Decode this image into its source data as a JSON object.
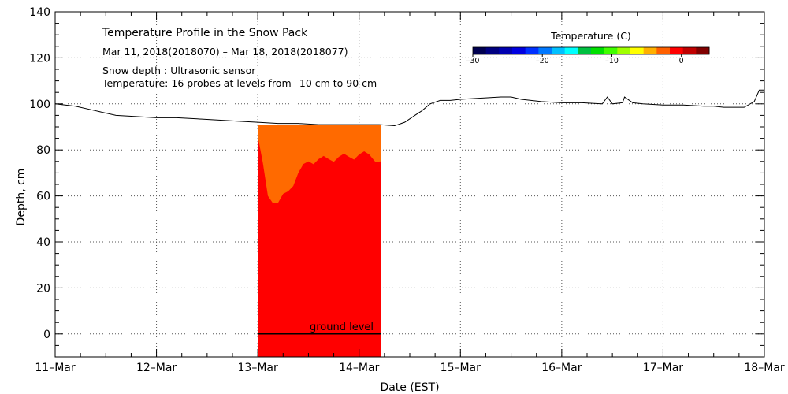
{
  "chart_data": {
    "type": "area",
    "title": "Temperature Profile in the Snow Pack",
    "date_range": "Mar 11, 2018(2018070) – Mar 18, 2018(2018077)",
    "notes": [
      "Snow depth : Ultrasonic sensor",
      "Temperature: 16 probes at levels from –10 cm to 90 cm"
    ],
    "xlabel": "Date (EST)",
    "ylabel": "Depth, cm",
    "x_ticks": [
      "11–Mar",
      "12–Mar",
      "13–Mar",
      "14–Mar",
      "15–Mar",
      "16–Mar",
      "17–Mar",
      "18–Mar"
    ],
    "xlim_days": [
      0,
      7
    ],
    "ylim": [
      -10,
      140
    ],
    "y_ticks": [
      0,
      20,
      40,
      60,
      80,
      100,
      120,
      140
    ],
    "grid": true,
    "ground_level_label": "ground level",
    "snow_depth_series": {
      "name": "Snow depth",
      "x_days": [
        0,
        0.2,
        0.4,
        0.6,
        0.8,
        1.0,
        1.2,
        1.4,
        1.6,
        1.8,
        2.0,
        2.2,
        2.4,
        2.6,
        2.8,
        3.0,
        3.2,
        3.35,
        3.45,
        3.55,
        3.62,
        3.7,
        3.8,
        3.9,
        4.0,
        4.2,
        4.4,
        4.5,
        4.6,
        4.8,
        5.0,
        5.2,
        5.4,
        5.45,
        5.5,
        5.6,
        5.62,
        5.7,
        5.8,
        6.0,
        6.2,
        6.4,
        6.5,
        6.6,
        6.8,
        6.9,
        6.95,
        7.0
      ],
      "y_cm": [
        100,
        99,
        97,
        95,
        94.5,
        94,
        94,
        93.5,
        93,
        92.5,
        92,
        91.5,
        91.5,
        91,
        91,
        91,
        91,
        90.5,
        92,
        95,
        97,
        100,
        101.5,
        101.5,
        102,
        102.5,
        103,
        103,
        102,
        101,
        100.5,
        100.5,
        100,
        103,
        100,
        100.5,
        103,
        100.5,
        100,
        99.5,
        99.5,
        99,
        99,
        98.5,
        98.5,
        101,
        106,
        106
      ]
    },
    "temperature_fill": {
      "x_start_days": 2.0,
      "x_end_days": 3.22,
      "upper_layer": {
        "level": "surface",
        "color": "#ff6a00",
        "top_cm": 91
      },
      "lower_layer": {
        "color": "#ff0000"
      },
      "boundary_x_days": [
        2.0,
        2.1,
        2.2,
        2.3,
        2.4,
        2.5,
        2.6,
        2.7,
        2.8,
        2.9,
        3.0,
        3.1,
        3.22
      ],
      "boundary_y_cm": [
        86,
        60,
        57,
        62,
        70,
        75,
        76,
        76,
        77,
        77,
        78,
        78,
        75
      ]
    },
    "colorbar": {
      "label": "Temperature (C)",
      "tick_labels": [
        "–30",
        "–20",
        "–10",
        "0"
      ],
      "tick_values": [
        -30,
        -20,
        -10,
        0
      ],
      "range": [
        -30,
        4
      ],
      "colors": [
        "#000050",
        "#000080",
        "#0000b0",
        "#0000e0",
        "#0030ff",
        "#0078ff",
        "#00c0ff",
        "#00ffff",
        "#00c040",
        "#00e000",
        "#40ff00",
        "#a0ff00",
        "#ffff00",
        "#ffb000",
        "#ff6000",
        "#ff0000",
        "#c00000",
        "#800000"
      ]
    }
  }
}
